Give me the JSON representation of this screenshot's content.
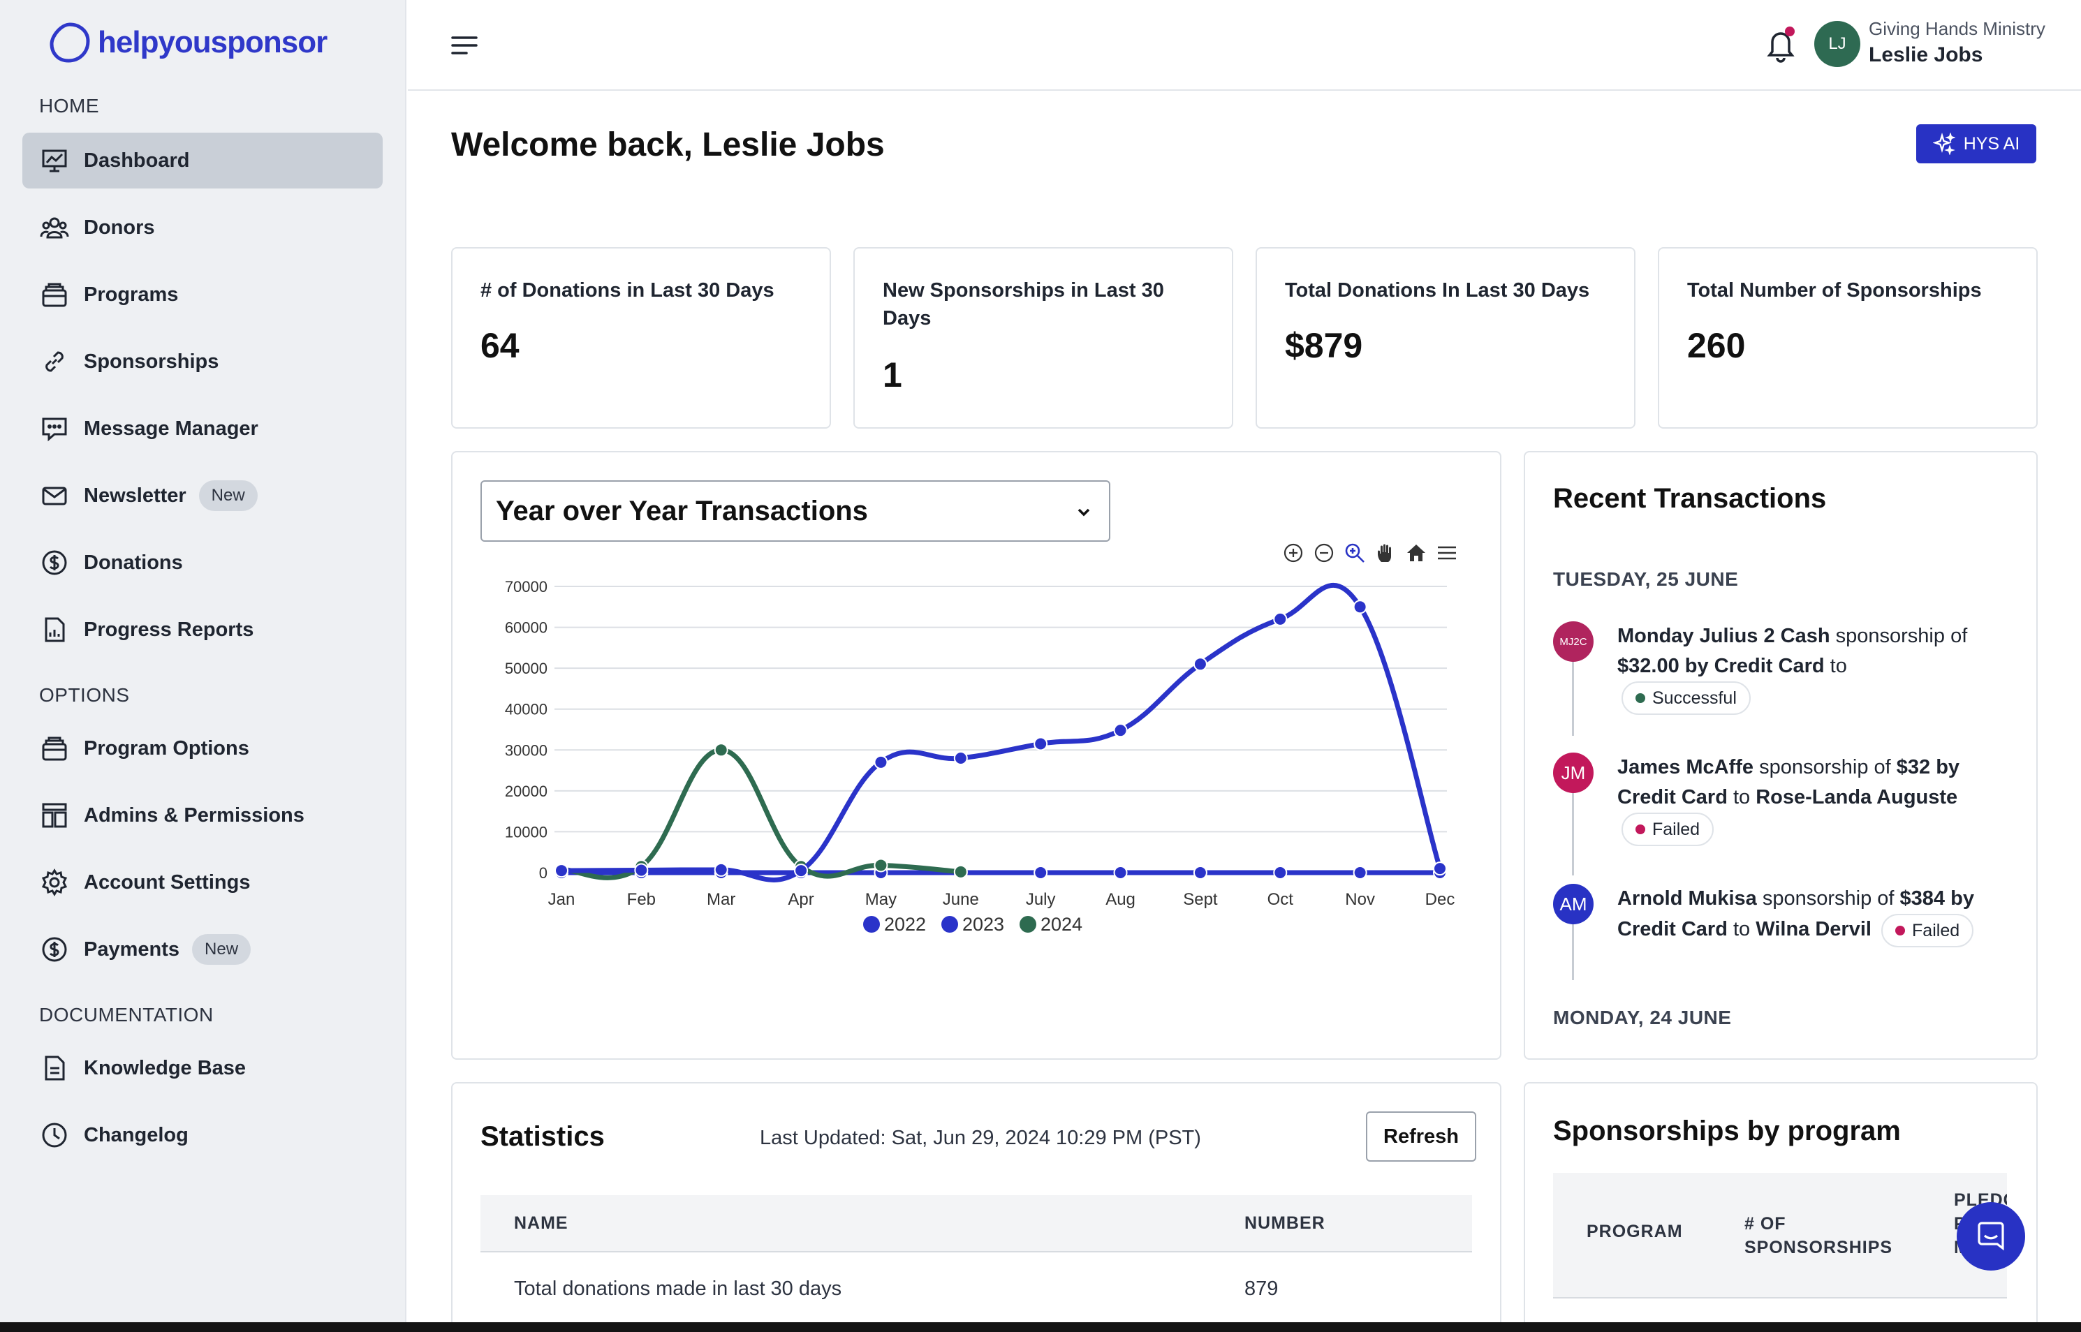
{
  "brand": {
    "name": "helpyousponsor"
  },
  "sidebar": {
    "sections": {
      "home": "HOME",
      "options": "OPTIONS",
      "documentation": "DOCUMENTATION"
    },
    "items": [
      {
        "label": "Dashboard",
        "icon": "presentation-chart-icon"
      },
      {
        "label": "Donors",
        "icon": "users-icon"
      },
      {
        "label": "Programs",
        "icon": "briefcase-icon"
      },
      {
        "label": "Sponsorships",
        "icon": "link-icon"
      },
      {
        "label": "Message Manager",
        "icon": "chat-icon"
      },
      {
        "label": "Newsletter",
        "icon": "mail-icon",
        "badge": "New"
      },
      {
        "label": "Donations",
        "icon": "dollar-circle-icon"
      },
      {
        "label": "Progress Reports",
        "icon": "report-icon"
      },
      {
        "label": "Program Options",
        "icon": "briefcase-icon"
      },
      {
        "label": "Admins & Permissions",
        "icon": "layout-icon"
      },
      {
        "label": "Account Settings",
        "icon": "gear-icon"
      },
      {
        "label": "Payments",
        "icon": "dollar-circle-icon",
        "badge": "New"
      },
      {
        "label": "Knowledge Base",
        "icon": "document-icon"
      },
      {
        "label": "Changelog",
        "icon": "clock-icon"
      }
    ]
  },
  "header": {
    "avatar_initials": "LJ",
    "org_name": "Giving Hands Ministry",
    "user_name": "Leslie Jobs"
  },
  "main": {
    "welcome": "Welcome back, Leslie Jobs",
    "ai_button": "HYS AI",
    "stats": [
      {
        "title": "# of Donations in Last 30 Days",
        "value": "64"
      },
      {
        "title": "New Sponsorships in Last 30 Days",
        "value": "1"
      },
      {
        "title": "Total Donations In Last 30 Days",
        "value": "$879"
      },
      {
        "title": "Total Number of Sponsorships",
        "value": "260"
      }
    ],
    "chart_select": "Year over Year Transactions"
  },
  "chart_data": {
    "type": "line",
    "categories": [
      "Jan",
      "Feb",
      "Mar",
      "Apr",
      "May",
      "June",
      "July",
      "Aug",
      "Sept",
      "Oct",
      "Nov",
      "Dec"
    ],
    "ylim": [
      0,
      70000
    ],
    "yticks": [
      "70000",
      "60000",
      "50000",
      "40000",
      "30000",
      "20000",
      "10000",
      "0"
    ],
    "grid": true,
    "legend_position": "bottom",
    "series": [
      {
        "name": "2022",
        "color": "#2a33c9",
        "values": [
          0,
          0,
          0,
          0,
          0,
          0,
          0,
          0,
          0,
          0,
          0,
          0
        ]
      },
      {
        "name": "2023",
        "color": "#2a33c9",
        "values": [
          500,
          600,
          700,
          500,
          27000,
          28000,
          31500,
          34800,
          51000,
          62000,
          65000,
          1000
        ]
      },
      {
        "name": "2024",
        "color": "#2e6b50",
        "values": [
          800,
          1500,
          30000,
          1500,
          1800,
          200,
          null,
          null,
          null,
          null,
          null,
          null
        ]
      }
    ]
  },
  "recent": {
    "title": "Recent Transactions",
    "dates": [
      "TUESDAY, 25 JUNE",
      "MONDAY, 24 JUNE"
    ],
    "transactions": [
      {
        "initials": "MJ2C",
        "color": "#b0245e",
        "name": "Monday Julius 2 Cash",
        "t1": " sponsorship of ",
        "amount": "$32.00 by Credit Card",
        "t2": " to",
        "recipient": "",
        "status": "Successful",
        "status_color": "#2e6b50"
      },
      {
        "initials": "JM",
        "color": "#c2185b",
        "name": "James McAffe",
        "t1": " sponsorship of ",
        "amount": "$32 by Credit Card",
        "t2": " to ",
        "recipient": "Rose-Landa Auguste",
        "status": "Failed",
        "status_color": "#c2185b"
      },
      {
        "initials": "AM",
        "color": "#2832c4",
        "name": "Arnold Mukisa",
        "t1": " sponsorship of ",
        "amount": "$384 by Credit Card",
        "t2": " to ",
        "recipient": "Wilna Dervil",
        "status": "Failed",
        "status_color": "#c2185b"
      }
    ]
  },
  "statistics": {
    "title": "Statistics",
    "last_updated": "Last Updated: Sat, Jun 29, 2024 10:29 PM (PST)",
    "refresh": "Refresh",
    "columns": [
      "NAME",
      "NUMBER"
    ],
    "rows": [
      {
        "name": "Total donations made in last 30 days",
        "number": "879"
      }
    ]
  },
  "sponsorships_by_program": {
    "title": "Sponsorships by program",
    "columns": [
      "PROGRAM",
      "# OF SPONSORSHIPS",
      "PLEDGED PER MONTH"
    ]
  }
}
